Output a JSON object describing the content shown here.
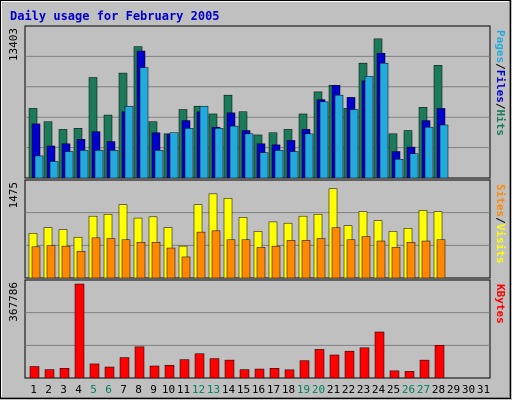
{
  "chart_data": {
    "type": "bar",
    "title": "Daily usage for February 2005",
    "days": [
      "1",
      "2",
      "3",
      "4",
      "5",
      "6",
      "7",
      "8",
      "9",
      "10",
      "11",
      "12",
      "13",
      "14",
      "15",
      "16",
      "17",
      "18",
      "19",
      "20",
      "21",
      "22",
      "23",
      "24",
      "25",
      "26",
      "27",
      "28",
      "29",
      "30",
      "31"
    ],
    "weekend_days": [
      "5",
      "6",
      "12",
      "13",
      "19",
      "20",
      "26",
      "27"
    ],
    "panels": [
      {
        "id": "hits-files-pages",
        "max_label": "13403",
        "ymax": 13403,
        "series": [
          {
            "name": "Hits",
            "color": "#1a7a5a",
            "values": [
              6300,
              5100,
              4400,
              4500,
              9100,
              5700,
              9500,
              11900,
              5100,
              4000,
              6200,
              6500,
              5800,
              7500,
              6000,
              3900,
              4100,
              4400,
              5800,
              7800,
              8400,
              6300,
              10400,
              12600,
              4000,
              4300,
              6400,
              10200,
              0,
              0,
              0
            ]
          },
          {
            "name": "Files",
            "color": "#0000cc",
            "values": [
              4900,
              2900,
              3100,
              3500,
              4200,
              3300,
              6000,
              11500,
              4100,
              4000,
              5200,
              6000,
              4600,
              5900,
              4300,
              3100,
              3000,
              3400,
              4400,
              7100,
              8400,
              7300,
              8800,
              11300,
              2400,
              2800,
              5200,
              6300,
              0,
              0,
              0
            ]
          },
          {
            "name": "Pages",
            "color": "#22aadd",
            "values": [
              2000,
              1500,
              2400,
              2500,
              2500,
              2500,
              6500,
              10000,
              2500,
              4100,
              4500,
              6500,
              4500,
              4700,
              4000,
              2300,
              2500,
              2400,
              4000,
              6900,
              7500,
              6200,
              9200,
              10400,
              1700,
              2200,
              4600,
              4800,
              0,
              0,
              0
            ]
          }
        ]
      },
      {
        "id": "visits-sites",
        "max_label": "1475",
        "ymax": 1475,
        "series": [
          {
            "name": "Visits",
            "color": "#ffff00",
            "values": [
              700,
              790,
              760,
              640,
              970,
              1000,
              1150,
              940,
              960,
              790,
              500,
              1150,
              1320,
              1250,
              950,
              730,
              880,
              860,
              970,
              1000,
              1400,
              820,
              1040,
              900,
              730,
              780,
              1060,
              1040,
              0,
              0,
              0
            ]
          },
          {
            "name": "Sites",
            "color": "#ff8800",
            "values": [
              490,
              510,
              500,
              420,
              630,
              620,
              600,
              560,
              560,
              470,
              330,
              720,
              740,
              600,
              600,
              480,
              500,
              590,
              590,
              620,
              790,
              600,
              650,
              580,
              480,
              560,
              580,
              600,
              0,
              0,
              0
            ]
          }
        ]
      },
      {
        "id": "kbytes",
        "max_label": "367786",
        "ymax": 367786,
        "series": [
          {
            "name": "KBytes",
            "color": "#ff0000",
            "values": [
              45000,
              33000,
              38000,
              367786,
              55000,
              43000,
              80000,
              122000,
              47000,
              50000,
              72000,
              95000,
              76000,
              70000,
              33000,
              35000,
              38000,
              32000,
              68000,
              112000,
              90000,
              105000,
              118000,
              180000,
              28000,
              26000,
              70000,
              128000,
              0,
              0,
              0
            ]
          }
        ]
      }
    ]
  }
}
